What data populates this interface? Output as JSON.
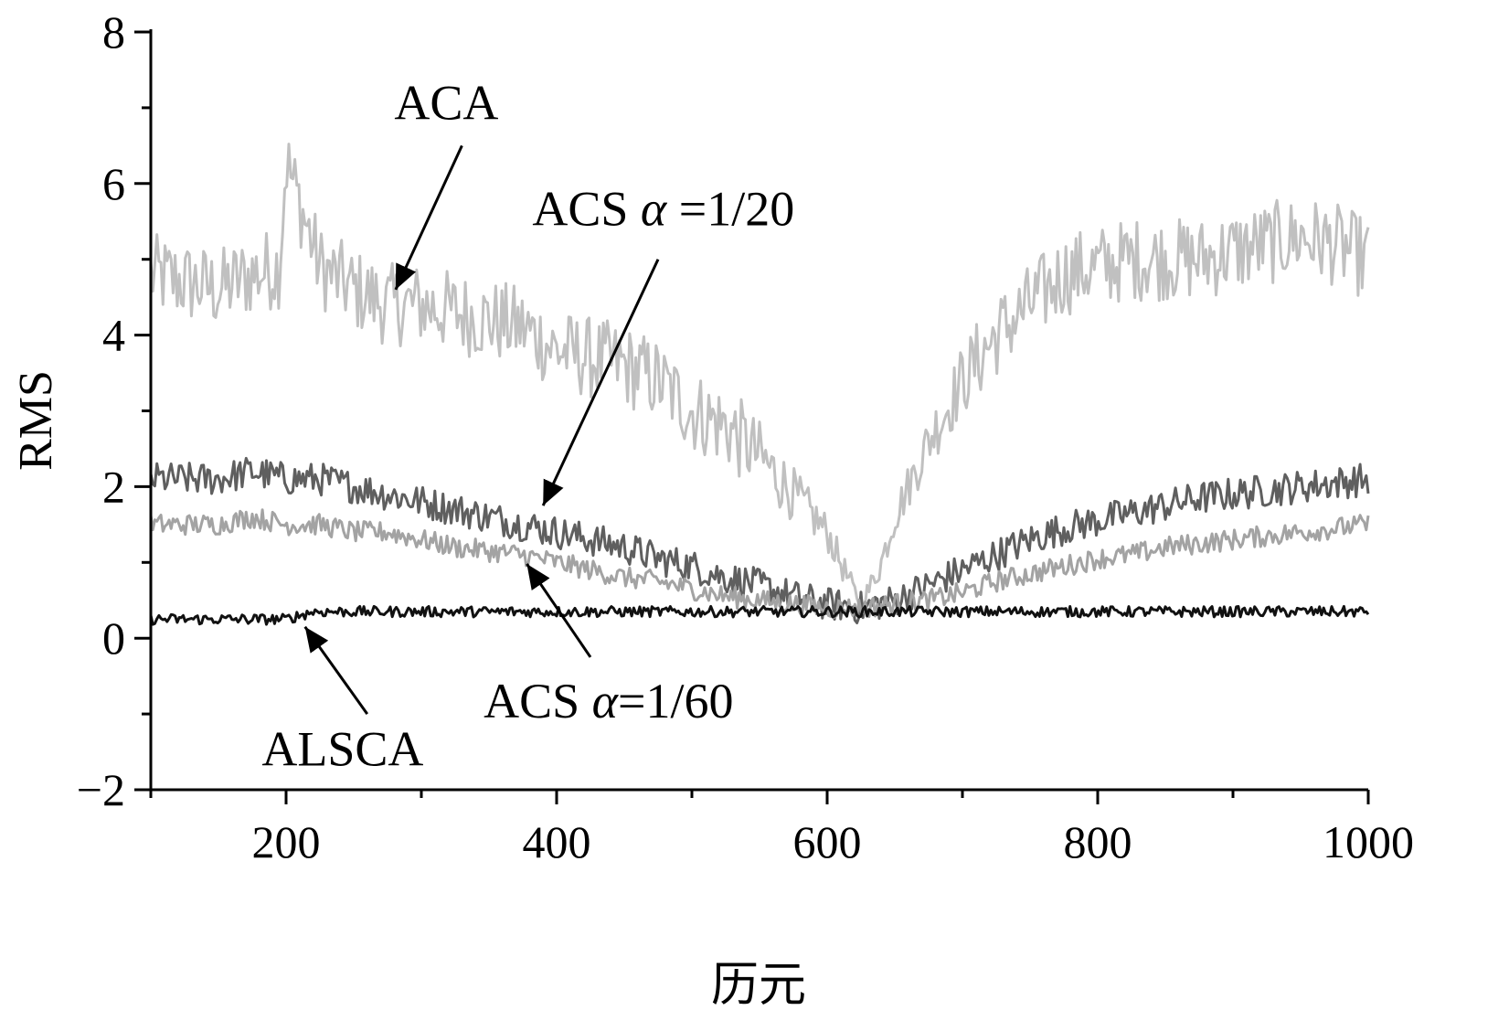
{
  "chart_data": {
    "type": "line",
    "title": "",
    "xlabel": "历元",
    "ylabel": "RMS",
    "xlim": [
      100,
      1000
    ],
    "ylim": [
      -2,
      8
    ],
    "xticks": [
      200,
      400,
      600,
      800,
      1000
    ],
    "yticks": [
      -2,
      0,
      2,
      4,
      6,
      8
    ],
    "xtick_labels": [
      "200",
      "400",
      "600",
      "800",
      "1000"
    ],
    "ytick_labels": [
      "−2",
      "0",
      "2",
      "4",
      "6",
      "8"
    ],
    "grid": false,
    "legend": "none",
    "series": [
      {
        "key": "aca",
        "color": "#c0c0c0",
        "x": [
          100,
          125,
          150,
          175,
          195,
          200,
          225,
          250,
          275,
          300,
          325,
          350,
          375,
          400,
          425,
          450,
          475,
          500,
          525,
          550,
          575,
          600,
          610,
          620,
          625,
          630,
          640,
          650,
          675,
          700,
          725,
          750,
          775,
          800,
          825,
          850,
          875,
          900,
          925,
          950,
          975,
          1000
        ],
        "y": [
          4.8,
          4.7,
          4.6,
          4.8,
          4.9,
          6.3,
          4.9,
          4.6,
          4.4,
          4.4,
          4.3,
          4.2,
          4.1,
          3.8,
          3.7,
          3.6,
          3.4,
          3.0,
          2.8,
          2.4,
          1.9,
          1.4,
          1.0,
          0.6,
          0.5,
          0.6,
          1.0,
          1.6,
          2.6,
          3.4,
          4.0,
          4.4,
          4.8,
          4.9,
          5.0,
          5.0,
          5.0,
          5.1,
          5.2,
          5.3,
          5.2,
          5.0
        ]
      },
      {
        "key": "acs20",
        "color": "#5f5f5f",
        "x": [
          100,
          125,
          150,
          175,
          200,
          225,
          250,
          275,
          300,
          325,
          350,
          375,
          400,
          425,
          450,
          475,
          500,
          525,
          550,
          575,
          600,
          625,
          650,
          675,
          700,
          725,
          750,
          775,
          800,
          825,
          850,
          875,
          900,
          925,
          950,
          975,
          1000
        ],
        "y": [
          2.1,
          2.1,
          2.1,
          2.2,
          2.1,
          2.1,
          2.0,
          1.9,
          1.8,
          1.7,
          1.6,
          1.5,
          1.4,
          1.3,
          1.2,
          1.05,
          0.95,
          0.8,
          0.7,
          0.55,
          0.45,
          0.4,
          0.5,
          0.7,
          0.9,
          1.1,
          1.3,
          1.45,
          1.55,
          1.65,
          1.75,
          1.85,
          1.9,
          1.95,
          2.0,
          2.05,
          2.1
        ]
      },
      {
        "key": "acs60",
        "color": "#a3a3a3",
        "x": [
          100,
          125,
          150,
          175,
          200,
          225,
          250,
          275,
          300,
          325,
          350,
          375,
          400,
          425,
          450,
          475,
          500,
          525,
          550,
          575,
          600,
          625,
          650,
          675,
          700,
          725,
          750,
          775,
          800,
          825,
          850,
          875,
          900,
          925,
          950,
          975,
          1000
        ],
        "y": [
          1.5,
          1.5,
          1.5,
          1.6,
          1.5,
          1.5,
          1.4,
          1.4,
          1.3,
          1.2,
          1.15,
          1.1,
          1.0,
          0.9,
          0.8,
          0.75,
          0.65,
          0.55,
          0.5,
          0.45,
          0.4,
          0.4,
          0.45,
          0.5,
          0.6,
          0.75,
          0.85,
          0.95,
          1.05,
          1.1,
          1.2,
          1.25,
          1.3,
          1.35,
          1.4,
          1.45,
          1.5
        ]
      },
      {
        "key": "alsca",
        "color": "#111111",
        "x": [
          100,
          150,
          200,
          210,
          220,
          300,
          400,
          500,
          600,
          700,
          800,
          900,
          1000
        ],
        "y": [
          0.25,
          0.25,
          0.25,
          0.3,
          0.35,
          0.35,
          0.35,
          0.35,
          0.35,
          0.35,
          0.35,
          0.35,
          0.35
        ]
      }
    ],
    "annotations": [
      {
        "key": "aca",
        "label": "ACA",
        "text_at": [
          280,
          6.85
        ],
        "arrow_from": [
          330,
          6.5
        ],
        "arrow_to": [
          281,
          4.6
        ]
      },
      {
        "key": "acs20",
        "label_prefix": "ACS ",
        "alpha": "α",
        "label_suffix": " =1/20",
        "text_at": [
          382,
          5.45
        ],
        "arrow_from": [
          475,
          5.0
        ],
        "arrow_to": [
          390,
          1.75
        ]
      },
      {
        "key": "acs60",
        "label_prefix": "ACS ",
        "alpha": "α",
        "label_suffix": "=1/60",
        "text_at": [
          346,
          -1.05
        ],
        "arrow_from": [
          425,
          -0.25
        ],
        "arrow_to": [
          378,
          0.98
        ]
      },
      {
        "key": "alsca",
        "label": "ALSCA",
        "text_at": [
          182,
          -1.68
        ],
        "arrow_from": [
          260,
          -1.0
        ],
        "arrow_to": [
          214,
          0.15
        ]
      }
    ]
  }
}
